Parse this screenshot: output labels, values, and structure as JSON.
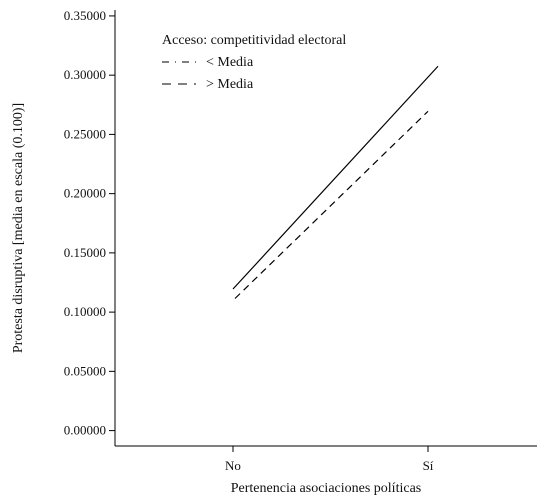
{
  "chart_data": {
    "type": "line",
    "categories": [
      "No",
      "Sí"
    ],
    "series": [
      {
        "name": "< Media",
        "values": [
          0.1195,
          0.3075
        ],
        "line_style": "dash-dot"
      },
      {
        "name": "> Media",
        "values": [
          0.1115,
          0.2695
        ],
        "line_style": "dashed"
      }
    ],
    "xlabel": "Pertenencia asociaciones políticas",
    "ylabel": "Protesta disruptiva [media en escala (0.100)]",
    "ylim": [
      -0.013,
      0.355
    ],
    "yticks": [
      "0.00000",
      "0.05000",
      "0.10000",
      "0.15000",
      "0.20000",
      "0.25000",
      "0.30000",
      "0.35000"
    ],
    "ytick_values": [
      0,
      0.05,
      0.1,
      0.15,
      0.2,
      0.25,
      0.3,
      0.35
    ],
    "legend": {
      "title": "Acceso: competitividad electoral",
      "position": "top-left"
    },
    "grid": false,
    "line_color": "#000000"
  }
}
